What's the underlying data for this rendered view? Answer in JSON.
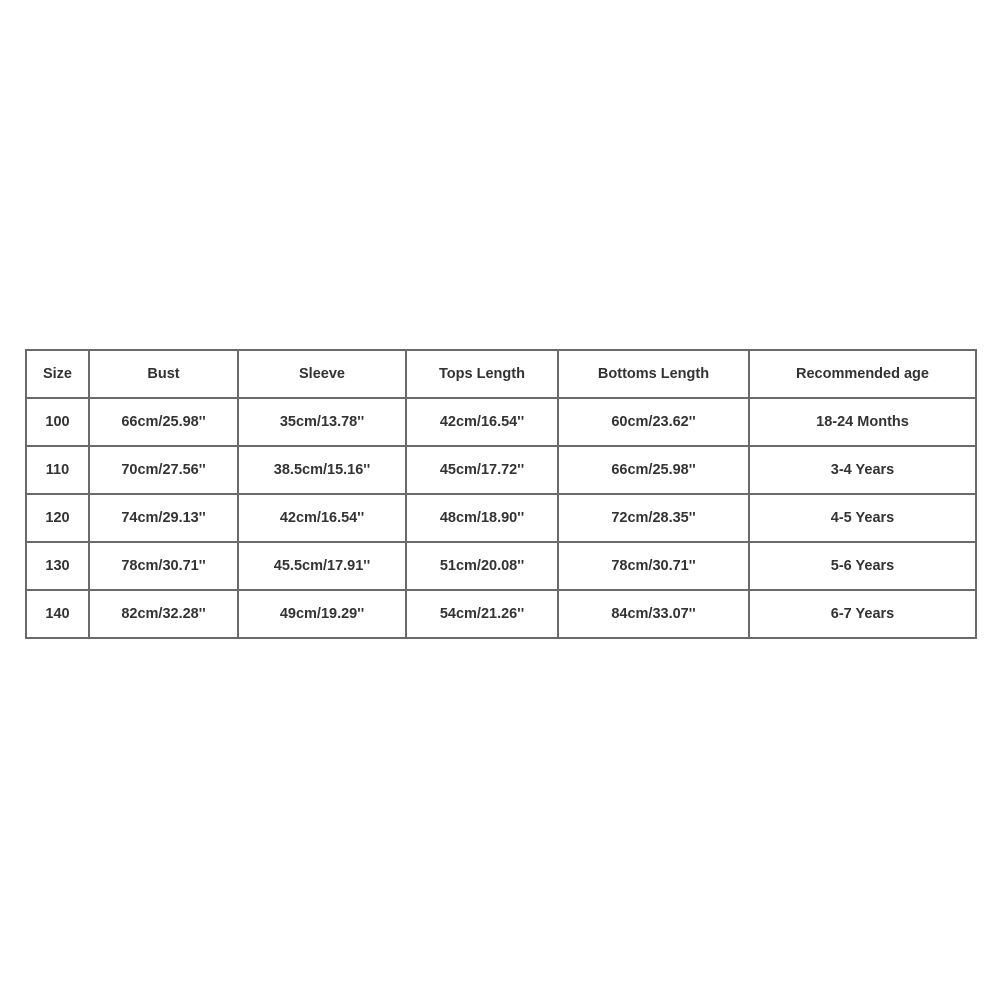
{
  "table": {
    "headers": [
      "Size",
      "Bust",
      "Sleeve",
      "Tops Length",
      "Bottoms Length",
      "Recommended age"
    ],
    "rows": [
      [
        "100",
        "66cm/25.98''",
        "35cm/13.78''",
        "42cm/16.54''",
        "60cm/23.62''",
        "18-24 Months"
      ],
      [
        "110",
        "70cm/27.56''",
        "38.5cm/15.16''",
        "45cm/17.72''",
        "66cm/25.98''",
        "3-4 Years"
      ],
      [
        "120",
        "74cm/29.13''",
        "42cm/16.54''",
        "48cm/18.90''",
        "72cm/28.35''",
        "4-5 Years"
      ],
      [
        "130",
        "78cm/30.71''",
        "45.5cm/17.91''",
        "51cm/20.08''",
        "78cm/30.71''",
        "5-6 Years"
      ],
      [
        "140",
        "82cm/32.28''",
        "49cm/19.29''",
        "54cm/21.26''",
        "84cm/33.07''",
        "6-7 Years"
      ]
    ]
  }
}
